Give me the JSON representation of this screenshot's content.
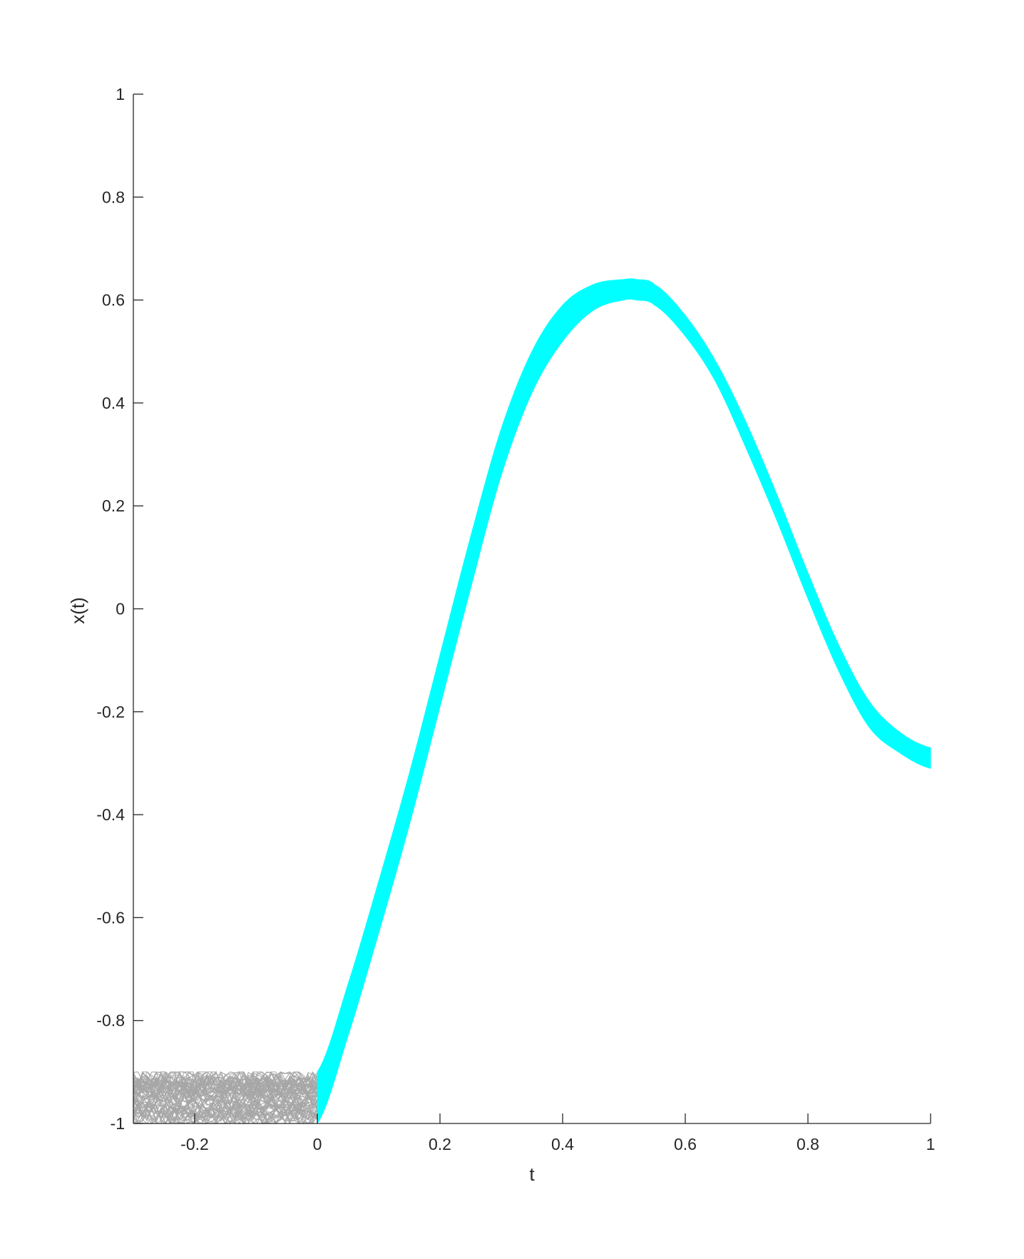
{
  "chart_data": {
    "type": "line",
    "title": "",
    "xlabel": "t",
    "ylabel": "x(t)",
    "xlim": [
      -0.3,
      1
    ],
    "ylim": [
      -1,
      1
    ],
    "grid": false,
    "legend": "none",
    "x_ticks": [
      -0.2,
      0,
      0.2,
      0.4,
      0.6,
      0.8,
      1
    ],
    "x_tick_labels": [
      "-0.2",
      "0",
      "0.2",
      "0.4",
      "0.6",
      "0.8",
      "1"
    ],
    "y_ticks": [
      -1,
      -0.8,
      -0.6,
      -0.4,
      -0.2,
      0,
      0.2,
      0.4,
      0.6,
      0.8,
      1
    ],
    "y_tick_labels": [
      "-1",
      "-0.8",
      "-0.6",
      "-0.4",
      "-0.2",
      "0",
      "0.2",
      "0.4",
      "0.6",
      "0.8",
      "1"
    ],
    "series": [
      {
        "color": "#a6a6a6",
        "description": "many noisy history trajectories on t in [-0.3, 0], values between -1.0 and -0.9",
        "t_range": [
          -0.3,
          0
        ],
        "band": [
          -1.0,
          -0.9
        ]
      },
      {
        "color": "#00ffff",
        "x": [
          0.0,
          0.05,
          0.1,
          0.15,
          0.2,
          0.25,
          0.3,
          0.35,
          0.4,
          0.45,
          0.5,
          0.52,
          0.55,
          0.6,
          0.65,
          0.7,
          0.75,
          0.8,
          0.85,
          0.9,
          0.95,
          1.0
        ],
        "upper": [
          -0.9,
          -0.73,
          -0.53,
          -0.32,
          -0.09,
          0.14,
          0.35,
          0.5,
          0.59,
          0.63,
          0.64,
          0.64,
          0.63,
          0.57,
          0.48,
          0.36,
          0.22,
          0.07,
          -0.07,
          -0.18,
          -0.24,
          -0.27
        ],
        "lower": [
          -1.0,
          -0.83,
          -0.63,
          -0.42,
          -0.19,
          0.04,
          0.26,
          0.42,
          0.52,
          0.58,
          0.6,
          0.6,
          0.59,
          0.53,
          0.44,
          0.31,
          0.17,
          0.02,
          -0.12,
          -0.23,
          -0.28,
          -0.31
        ]
      }
    ]
  }
}
